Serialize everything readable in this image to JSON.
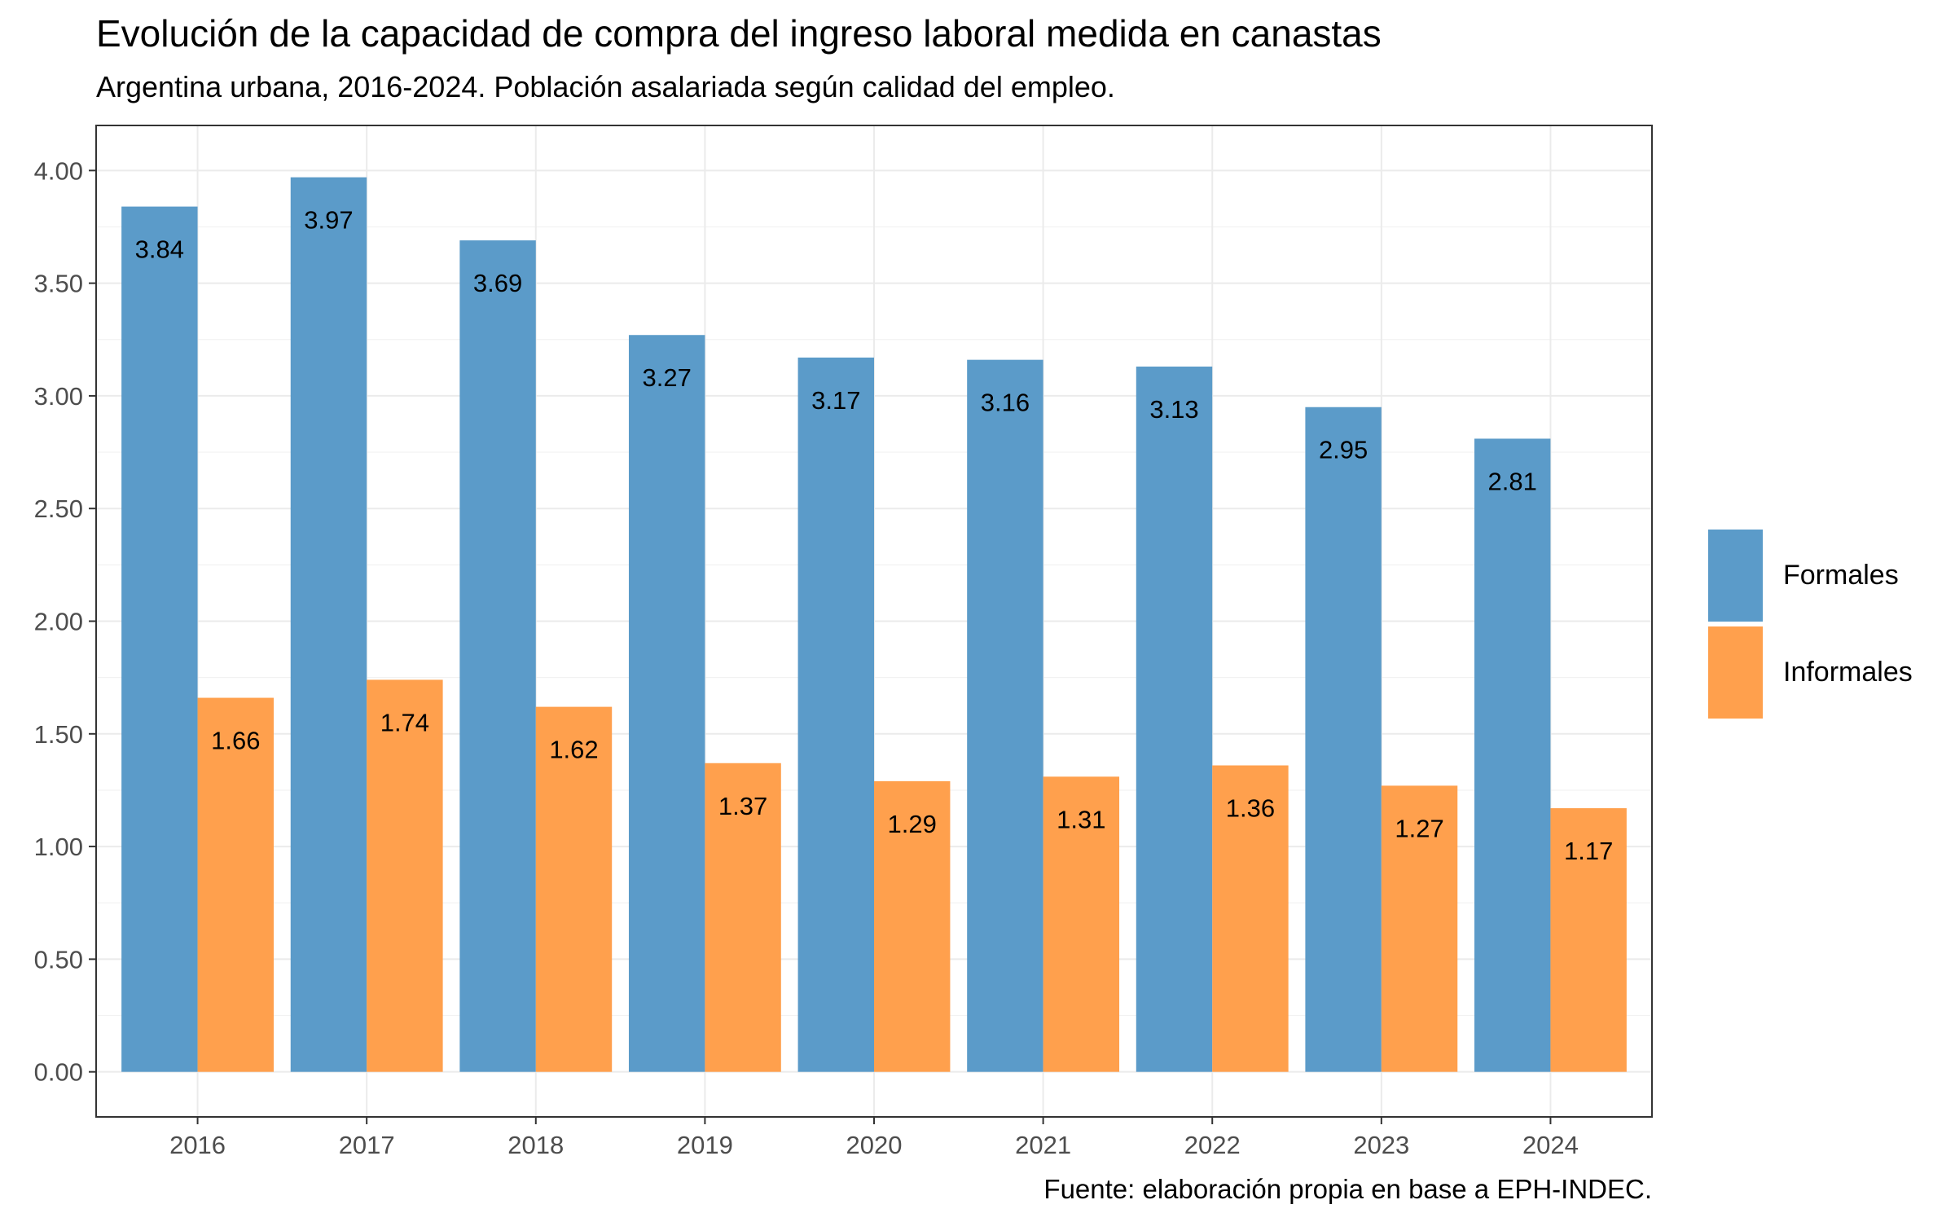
{
  "chart_data": {
    "type": "bar",
    "title": "Evolución de la capacidad de compra del ingreso laboral medida en canastas",
    "subtitle": "Argentina urbana, 2016-2024. Población asalariada según calidad del empleo.",
    "caption": "Fuente: elaboración propia en base a EPH-INDEC.",
    "xlabel": "",
    "ylabel": "",
    "categories": [
      "2016",
      "2017",
      "2018",
      "2019",
      "2020",
      "2021",
      "2022",
      "2023",
      "2024"
    ],
    "series": [
      {
        "name": "Formales",
        "color": "#5b9bc9",
        "values": [
          3.84,
          3.97,
          3.69,
          3.27,
          3.17,
          3.16,
          3.13,
          2.95,
          2.81
        ],
        "labels": [
          "3.84",
          "3.97",
          "3.69",
          "3.27",
          "3.17",
          "3.16",
          "3.13",
          "2.95",
          "2.81"
        ]
      },
      {
        "name": "Informales",
        "color": "#ffa04d",
        "values": [
          1.66,
          1.74,
          1.62,
          1.37,
          1.29,
          1.31,
          1.36,
          1.27,
          1.17
        ],
        "labels": [
          "1.66",
          "1.74",
          "1.62",
          "1.37",
          "1.29",
          "1.31",
          "1.36",
          "1.27",
          "1.17"
        ]
      }
    ],
    "ylim": [
      -0.2,
      4.2
    ],
    "yticks": [
      0,
      0.5,
      1,
      1.5,
      2,
      2.5,
      3,
      3.5,
      4
    ],
    "ytick_labels": [
      "0.00",
      "0.50",
      "1.00",
      "1.50",
      "2.00",
      "2.50",
      "3.00",
      "3.50",
      "4.00"
    ],
    "grid": true,
    "legend_position": "right"
  }
}
